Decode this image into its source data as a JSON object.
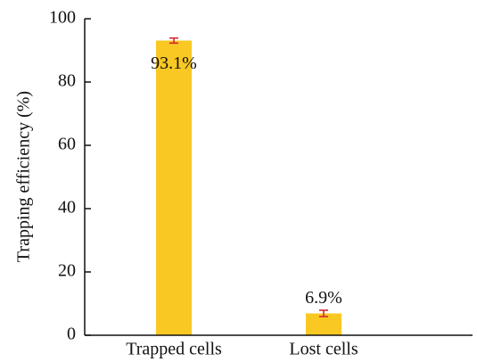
{
  "chart_data": {
    "type": "bar",
    "ylabel": "Trapping  efficiency (%)",
    "categories": [
      "Trapped cells",
      "Lost cells"
    ],
    "values": [
      93.1,
      6.9
    ],
    "value_labels": [
      "93.1%",
      "6.9%"
    ],
    "errors": [
      0.8,
      1.0
    ],
    "color": "#f9c823",
    "error_color": "#d9262b",
    "ylim": [
      0,
      100
    ],
    "yticks": [
      0,
      20,
      40,
      60,
      80,
      100
    ],
    "grid": false
  }
}
